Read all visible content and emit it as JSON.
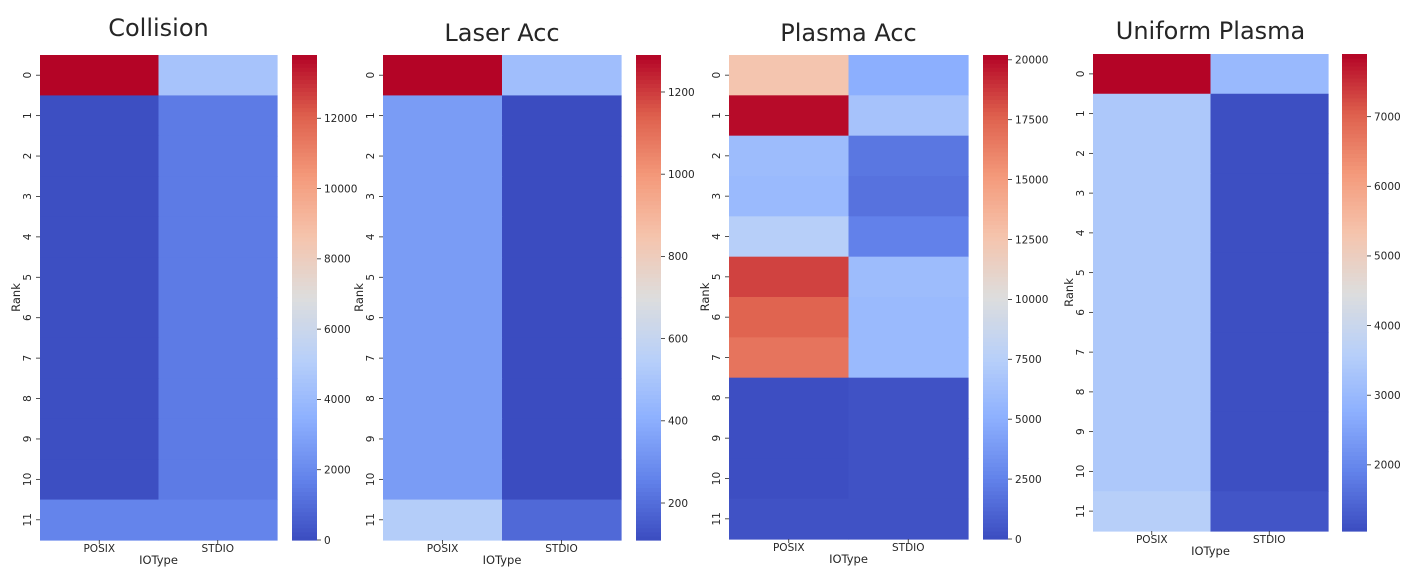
{
  "chart_data": [
    {
      "type": "heatmap",
      "title": "Collision",
      "xlabel": "IOType",
      "ylabel": "Rank",
      "columns": [
        "POSIX",
        "STDIO"
      ],
      "rows": [
        "0",
        "1",
        "2",
        "3",
        "4",
        "5",
        "6",
        "7",
        "8",
        "9",
        "10",
        "11"
      ],
      "values": [
        [
          13800,
          4500
        ],
        [
          100,
          1500
        ],
        [
          100,
          1500
        ],
        [
          100,
          1500
        ],
        [
          100,
          1500
        ],
        [
          100,
          1500
        ],
        [
          100,
          1500
        ],
        [
          100,
          1500
        ],
        [
          100,
          1500
        ],
        [
          100,
          1500
        ],
        [
          100,
          1500
        ],
        [
          1800,
          1800
        ]
      ],
      "colorbar_range": [
        0,
        13800
      ],
      "colorbar_ticks": [
        0,
        2000,
        4000,
        6000,
        8000,
        10000,
        12000
      ],
      "colorbar_tick_labels": [
        "0",
        "2000",
        "4000",
        "6000",
        "8000",
        "10000",
        "12000"
      ],
      "colormap": "coolwarm"
    },
    {
      "type": "heatmap",
      "title": "Laser Acc",
      "xlabel": "IOType",
      "ylabel": "Rank",
      "columns": [
        "POSIX",
        "STDIO"
      ],
      "rows": [
        "0",
        "1",
        "2",
        "3",
        "4",
        "5",
        "6",
        "7",
        "8",
        "9",
        "10",
        "11"
      ],
      "values": [
        [
          1290,
          470
        ],
        [
          340,
          110
        ],
        [
          340,
          110
        ],
        [
          340,
          110
        ],
        [
          340,
          110
        ],
        [
          340,
          110
        ],
        [
          340,
          110
        ],
        [
          340,
          110
        ],
        [
          340,
          110
        ],
        [
          340,
          110
        ],
        [
          340,
          110
        ],
        [
          540,
          190
        ]
      ],
      "colorbar_range": [
        110,
        1290
      ],
      "colorbar_ticks": [
        200,
        400,
        600,
        800,
        1000,
        1200
      ],
      "colorbar_tick_labels": [
        "200",
        "400",
        "600",
        "800",
        "1000",
        "1200"
      ],
      "colormap": "coolwarm"
    },
    {
      "type": "heatmap",
      "title": "Plasma Acc",
      "xlabel": "IOType",
      "ylabel": "Rank",
      "columns": [
        "POSIX",
        "STDIO"
      ],
      "rows": [
        "0",
        "1",
        "2",
        "3",
        "4",
        "5",
        "6",
        "7",
        "8",
        "9",
        "10",
        "11"
      ],
      "values": [
        [
          12500,
          5000
        ],
        [
          20000,
          6500
        ],
        [
          6000,
          2000
        ],
        [
          5800,
          1800
        ],
        [
          7500,
          2500
        ],
        [
          18500,
          6000
        ],
        [
          17500,
          5800
        ],
        [
          16800,
          5800
        ],
        [
          100,
          300
        ],
        [
          100,
          300
        ],
        [
          100,
          300
        ],
        [
          300,
          300
        ]
      ],
      "colorbar_range": [
        0,
        20200
      ],
      "colorbar_ticks": [
        0,
        2500,
        5000,
        7500,
        10000,
        12500,
        15000,
        17500,
        20000
      ],
      "colorbar_tick_labels": [
        "0",
        "2500",
        "5000",
        "7500",
        "10000",
        "12500",
        "15000",
        "17500",
        "20000"
      ],
      "colormap": "coolwarm"
    },
    {
      "type": "heatmap",
      "title": "Uniform Plasma",
      "xlabel": "IOType",
      "ylabel": "Rank",
      "columns": [
        "POSIX",
        "STDIO"
      ],
      "rows": [
        "0",
        "1",
        "2",
        "3",
        "4",
        "5",
        "6",
        "7",
        "8",
        "9",
        "10",
        "11"
      ],
      "values": [
        [
          7900,
          3000
        ],
        [
          3400,
          1100
        ],
        [
          3400,
          1100
        ],
        [
          3400,
          1100
        ],
        [
          3400,
          1100
        ],
        [
          3400,
          1100
        ],
        [
          3400,
          1100
        ],
        [
          3400,
          1100
        ],
        [
          3400,
          1100
        ],
        [
          3400,
          1100
        ],
        [
          3400,
          1100
        ],
        [
          3600,
          1200
        ]
      ],
      "colorbar_range": [
        1050,
        7900
      ],
      "colorbar_ticks": [
        2000,
        3000,
        4000,
        5000,
        6000,
        7000
      ],
      "colorbar_tick_labels": [
        "2000",
        "3000",
        "4000",
        "5000",
        "6000",
        "7000"
      ],
      "colormap": "coolwarm"
    }
  ]
}
